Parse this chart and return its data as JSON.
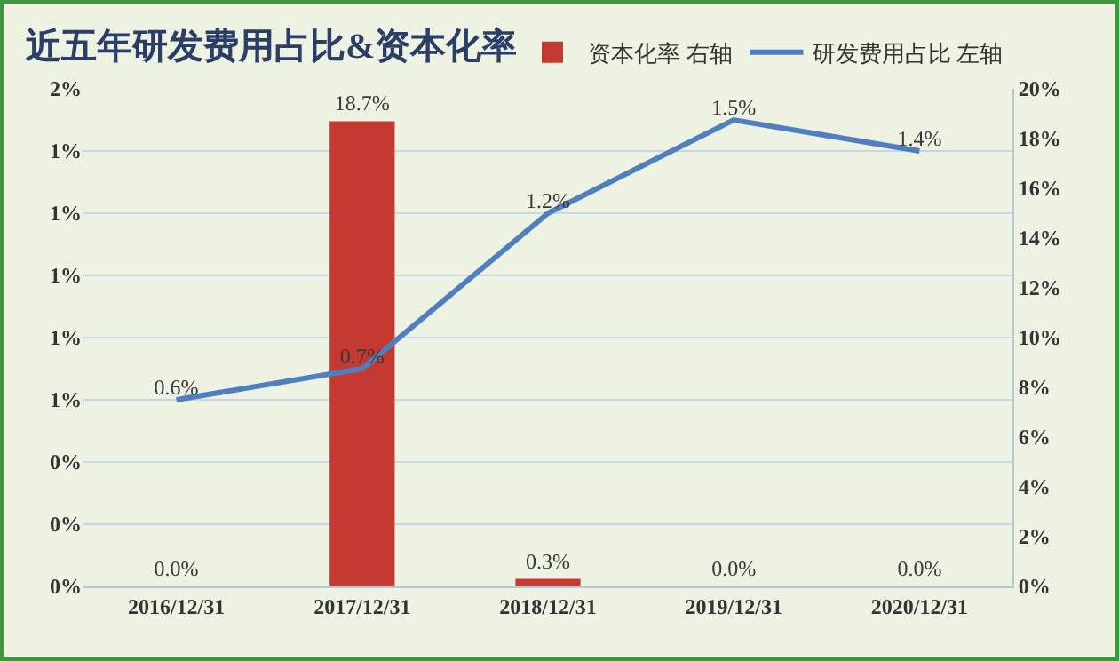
{
  "chart_data": {
    "type": "bar",
    "title": "近五年研发费用占比&资本化率",
    "categories": [
      "2016/12/31",
      "2017/12/31",
      "2018/12/31",
      "2019/12/31",
      "2020/12/31"
    ],
    "series": [
      {
        "name": "资本化率 右轴",
        "axis": "y2",
        "color": "#c43a31",
        "values": [
          0.0,
          18.7,
          0.3,
          0.0,
          0.0
        ],
        "value_labels": [
          "0.0%",
          "18.7%",
          "0.3%",
          "0.0%",
          "0.0%"
        ]
      },
      {
        "name": "研发费用占比 左轴",
        "type": "line",
        "axis": "y",
        "color": "#4f7fbf",
        "values": [
          0.6,
          0.7,
          1.2,
          1.5,
          1.4
        ],
        "value_labels": [
          "0.6%",
          "0.7%",
          "1.2%",
          "1.5%",
          "1.4%"
        ]
      }
    ],
    "ylim": [
      0,
      1.6
    ],
    "yticks": [
      {
        "value": 0,
        "label": "0%"
      },
      {
        "value": 0.2,
        "label": "0%"
      },
      {
        "value": 0.4,
        "label": "0%"
      },
      {
        "value": 0.6,
        "label": "1%"
      },
      {
        "value": 0.8,
        "label": "1%"
      },
      {
        "value": 1.0,
        "label": "1%"
      },
      {
        "value": 1.2,
        "label": "1%"
      },
      {
        "value": 1.4,
        "label": "1%"
      },
      {
        "value": 1.6,
        "label": "2%"
      }
    ],
    "y2lim": [
      0,
      20
    ],
    "y2ticks": [
      {
        "value": 0,
        "label": "0%"
      },
      {
        "value": 2,
        "label": "2%"
      },
      {
        "value": 4,
        "label": "4%"
      },
      {
        "value": 6,
        "label": "6%"
      },
      {
        "value": 8,
        "label": "8%"
      },
      {
        "value": 10,
        "label": "10%"
      },
      {
        "value": 12,
        "label": "12%"
      },
      {
        "value": 14,
        "label": "14%"
      },
      {
        "value": 16,
        "label": "16%"
      },
      {
        "value": 18,
        "label": "18%"
      },
      {
        "value": 20,
        "label": "20%"
      }
    ],
    "grid": "y",
    "legend": "top right",
    "marker": "none",
    "line_style": "solid"
  }
}
